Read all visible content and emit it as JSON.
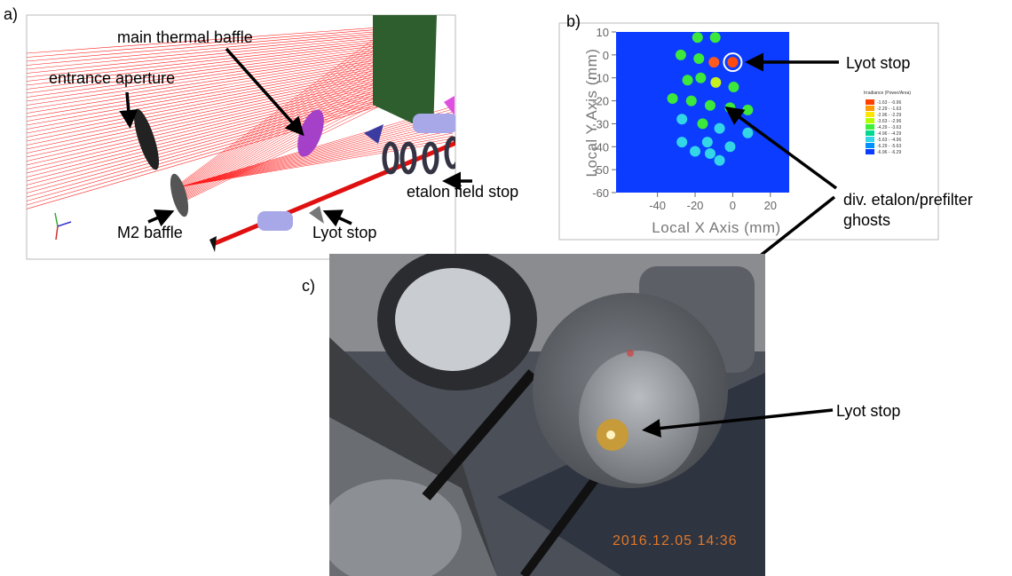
{
  "panel_labels": [
    "a)",
    "b)",
    "c)"
  ],
  "raytrace": {
    "labels": [
      "main thermal baffle",
      "entrance aperture",
      "etalon field stop",
      "M2 baffle",
      "Lyot stop"
    ]
  },
  "chart_data": {
    "type": "scatter",
    "xlabel": "Local X Axis (mm)",
    "ylabel": "Local Y Axis (mm)",
    "xlim": [
      -62,
      30
    ],
    "ylim": [
      -60,
      10
    ],
    "xticks": [
      -40,
      -20,
      0,
      20
    ],
    "yticks": [
      10,
      0,
      -10,
      -20,
      -30,
      -40,
      -50,
      -60
    ],
    "background": "#0b3cff",
    "x": [
      -18.7,
      -9.3,
      -27.6,
      -18,
      -10,
      0,
      -24,
      -17,
      -9,
      0.5,
      -32,
      -22,
      -12,
      -1.4,
      8,
      -27,
      -16,
      -7,
      8,
      -27,
      -13.5,
      -1.4,
      -20,
      -12,
      -7
    ],
    "values": [
      7.6,
      7.6,
      0,
      -1.6,
      -3.2,
      -3.2,
      -11,
      -10,
      -12,
      -14,
      -19,
      -20,
      -22,
      -23,
      -24,
      -28,
      -30,
      -32,
      -34,
      -38,
      -38,
      -40,
      -42,
      -43,
      -46
    ],
    "point_colors": [
      "#3ce83c",
      "#3ce83c",
      "#3ce83c",
      "#3ce83c",
      "#ff5a1e",
      "#ff4a10",
      "#3ce83c",
      "#3ce83c",
      "#c8f01e",
      "#3ce83c",
      "#3ce83c",
      "#3ce83c",
      "#3ce83c",
      "#3ce83c",
      "#3ce83c",
      "#33d6e6",
      "#3ce83c",
      "#33d6e6",
      "#33d6e6",
      "#33d6e6",
      "#33d6e6",
      "#33d6e6",
      "#33d6e6",
      "#33d6e6",
      "#33d6e6"
    ],
    "legend_title": "Irradiance (Power/Area)",
    "legend": [
      {
        "label": "-1.63 - -0.96",
        "color": "#ff4000"
      },
      {
        "label": "-2.29 - -1.63",
        "color": "#ff9a00"
      },
      {
        "label": "-2.96 - -2.29",
        "color": "#ffe600"
      },
      {
        "label": "-3.63 - -2.96",
        "color": "#b4ff00"
      },
      {
        "label": "-4.29 - -3.63",
        "color": "#3cf03c"
      },
      {
        "label": "-4.96 - -4.29",
        "color": "#00d890"
      },
      {
        "label": "-5.63 - -4.96",
        "color": "#33d6e6"
      },
      {
        "label": "-6.29 - -5.63",
        "color": "#0090ff"
      },
      {
        "label": "-6.96 - -6.29",
        "color": "#0b3cff"
      }
    ]
  },
  "chart_annotations": [
    "Lyot stop",
    "div. etalon/prefilter",
    "ghosts"
  ],
  "photo": {
    "annotation": "Lyot stop",
    "timestamp": "2016.12.05 14:36"
  }
}
